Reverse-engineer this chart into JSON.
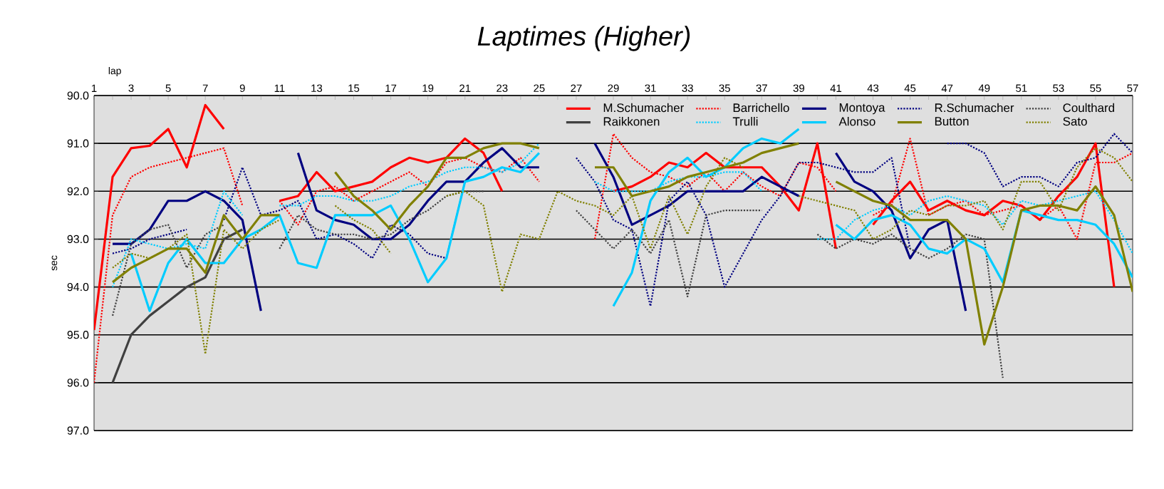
{
  "chart_data": {
    "type": "line",
    "title": "Laptimes (Higher)",
    "xlabel": "lap",
    "ylabel": "sec",
    "x": [
      1,
      2,
      3,
      4,
      5,
      6,
      7,
      8,
      9,
      10,
      11,
      12,
      13,
      14,
      15,
      16,
      17,
      18,
      19,
      20,
      21,
      22,
      23,
      24,
      25,
      26,
      27,
      28,
      29,
      30,
      31,
      32,
      33,
      34,
      35,
      36,
      37,
      38,
      39,
      40,
      41,
      42,
      43,
      44,
      45,
      46,
      47,
      48,
      49,
      50,
      51,
      52,
      53,
      54,
      55,
      56,
      57
    ],
    "xlim": [
      1,
      57
    ],
    "ylim": [
      97,
      90
    ],
    "xticks": [
      1,
      {
        "value": 2,
        "label": null
      },
      3,
      {
        "value": 4,
        "label": null
      },
      5,
      {
        "value": 6,
        "label": null
      },
      7,
      {
        "value": 8,
        "label": null
      },
      9,
      {
        "value": 10,
        "label": null
      },
      11,
      {
        "value": 12,
        "label": null
      },
      13,
      {
        "value": 14,
        "label": null
      },
      15,
      {
        "value": 16,
        "label": null
      },
      17,
      {
        "value": 18,
        "label": null
      },
      19,
      {
        "value": 20,
        "label": null
      },
      21,
      {
        "value": 22,
        "label": null
      },
      23,
      {
        "value": 24,
        "label": null
      },
      25,
      {
        "value": 26,
        "label": null
      },
      27,
      {
        "value": 28,
        "label": null
      },
      29,
      {
        "value": 30,
        "label": null
      },
      31,
      {
        "value": 32,
        "label": null
      },
      33,
      {
        "value": 34,
        "label": null
      },
      35,
      {
        "value": 36,
        "label": null
      },
      37,
      {
        "value": 38,
        "label": null
      },
      39,
      {
        "value": 40,
        "label": null
      },
      41,
      {
        "value": 42,
        "label": null
      },
      43,
      {
        "value": 44,
        "label": null
      },
      45,
      {
        "value": 46,
        "label": null
      },
      47,
      {
        "value": 48,
        "label": null
      },
      49,
      {
        "value": 50,
        "label": null
      },
      51,
      {
        "value": 52,
        "label": null
      },
      53,
      {
        "value": 54,
        "label": null
      },
      55,
      {
        "value": 56,
        "label": null
      },
      57
    ],
    "yticks": [
      {
        "value": 90,
        "label": "90.0"
      },
      {
        "value": 91,
        "label": "91.0"
      },
      {
        "value": 92,
        "label": "92.0"
      },
      {
        "value": 93,
        "label": "93.0"
      },
      {
        "value": 94,
        "label": "94.0"
      },
      {
        "value": 95,
        "label": "95.0"
      },
      {
        "value": 96,
        "label": "96.0"
      },
      {
        "value": 97,
        "label": "97.0"
      }
    ],
    "grid": "y",
    "legend": "top",
    "marker": "none",
    "series": [
      {
        "name": "M.Schumacher",
        "color": "#ff0000",
        "line_style": "solid",
        "values": [
          94.9,
          91.7,
          91.1,
          91.05,
          90.7,
          91.5,
          90.2,
          90.7,
          null,
          null,
          92.2,
          92.1,
          91.6,
          92.0,
          91.9,
          91.8,
          91.5,
          91.3,
          91.4,
          91.3,
          90.9,
          91.2,
          92.0,
          null,
          null,
          null,
          null,
          null,
          92.0,
          91.9,
          91.7,
          91.4,
          91.5,
          91.2,
          91.5,
          91.5,
          91.5,
          91.9,
          92.4,
          91.0,
          93.2,
          null,
          92.7,
          92.2,
          91.8,
          92.4,
          92.2,
          92.4,
          92.5,
          92.2,
          92.3,
          92.6,
          92.1,
          91.7,
          91.0,
          94.0,
          null
        ]
      },
      {
        "name": "Barrichello",
        "color": "#ff0000",
        "line_style": "dotted",
        "values": [
          96.0,
          92.5,
          91.7,
          91.5,
          91.4,
          91.3,
          91.2,
          91.1,
          92.3,
          null,
          92.2,
          92.7,
          92.0,
          91.9,
          92.2,
          92.0,
          91.8,
          91.6,
          91.9,
          91.4,
          91.3,
          91.5,
          91.6,
          91.3,
          91.8,
          null,
          null,
          93.0,
          90.8,
          91.3,
          91.6,
          91.7,
          91.9,
          91.6,
          92.0,
          91.6,
          91.9,
          92.1,
          91.4,
          91.5,
          92.0,
          null,
          92.5,
          92.3,
          90.9,
          92.5,
          92.3,
          92.2,
          92.5,
          92.4,
          92.3,
          92.6,
          92.3,
          93.0,
          91.4,
          91.4,
          91.2
        ]
      },
      {
        "name": "Montoya",
        "color": "#000080",
        "line_style": "solid",
        "values": [
          null,
          93.1,
          93.1,
          92.8,
          92.2,
          92.2,
          92.0,
          92.2,
          92.6,
          94.5,
          null,
          91.2,
          92.4,
          92.6,
          92.7,
          93.0,
          93.0,
          92.7,
          92.2,
          91.8,
          91.8,
          91.4,
          91.1,
          91.5,
          91.5,
          null,
          null,
          91.0,
          91.7,
          92.7,
          92.5,
          92.3,
          92.0,
          92.0,
          92.0,
          92.0,
          91.7,
          91.9,
          92.1,
          null,
          91.2,
          91.8,
          92.0,
          92.4,
          93.4,
          92.8,
          92.6,
          94.5,
          null,
          null,
          null,
          null,
          null,
          null,
          null,
          null,
          null
        ]
      },
      {
        "name": "R.Schumacher",
        "color": "#000080",
        "line_style": "dotted",
        "values": [
          null,
          93.3,
          93.2,
          93.0,
          92.9,
          92.8,
          null,
          92.6,
          91.5,
          92.5,
          92.4,
          92.2,
          93.0,
          92.9,
          93.1,
          93.4,
          92.7,
          92.9,
          93.3,
          93.4,
          91.8,
          91.4,
          91.1,
          null,
          null,
          null,
          91.3,
          91.8,
          92.6,
          92.8,
          94.4,
          92.2,
          91.8,
          92.5,
          94.0,
          93.3,
          92.6,
          92.1,
          91.4,
          91.4,
          91.5,
          91.6,
          91.6,
          91.3,
          93.2,
          null,
          91.0,
          91.0,
          91.2,
          91.9,
          91.7,
          91.7,
          91.9,
          91.4,
          91.3,
          90.8,
          91.2
        ]
      },
      {
        "name": "Coulthard",
        "color": "#404040",
        "line_style": "dotted",
        "values": [
          null,
          94.6,
          93.1,
          92.8,
          92.7,
          93.6,
          92.9,
          92.7,
          null,
          null,
          93.2,
          92.5,
          92.8,
          92.9,
          92.9,
          93.0,
          92.9,
          92.6,
          92.4,
          92.1,
          92.0,
          92.0,
          null,
          null,
          null,
          null,
          92.4,
          92.8,
          93.2,
          92.8,
          93.3,
          92.6,
          94.2,
          92.5,
          92.4,
          92.4,
          92.4,
          null,
          null,
          92.9,
          93.2,
          93.0,
          93.1,
          92.9,
          93.2,
          93.4,
          93.2,
          92.9,
          93.0,
          95.9,
          null,
          null,
          null,
          null,
          null,
          null,
          null
        ]
      },
      {
        "name": "Raikkonen",
        "color": "#404040",
        "line_style": "solid",
        "values": [
          null,
          96.0,
          95.0,
          94.6,
          94.3,
          94.0,
          93.8,
          93.0,
          92.8,
          null,
          null,
          null,
          null,
          null,
          null,
          null,
          null,
          null,
          null,
          null,
          null,
          null,
          null,
          null,
          null,
          null,
          null,
          null,
          null,
          null,
          null,
          null,
          null,
          null,
          null,
          null,
          null,
          null,
          null,
          null,
          null,
          null,
          null,
          null,
          null,
          null,
          null,
          null,
          null,
          null,
          null,
          null,
          null,
          null,
          null,
          null,
          null
        ]
      },
      {
        "name": "Trulli",
        "color": "#00ccff",
        "line_style": "dotted",
        "values": [
          null,
          94.0,
          93.0,
          93.1,
          93.2,
          93.1,
          93.2,
          92.0,
          92.5,
          null,
          92.3,
          92.3,
          92.1,
          92.1,
          92.2,
          92.2,
          92.1,
          91.9,
          91.8,
          91.6,
          91.5,
          91.5,
          91.6,
          91.4,
          91.0,
          null,
          null,
          91.8,
          92.0,
          92.0,
          92.0,
          91.8,
          91.7,
          91.7,
          91.6,
          91.6,
          92.0,
          null,
          null,
          93.0,
          93.0,
          92.6,
          92.4,
          92.3,
          92.5,
          92.2,
          92.1,
          92.2,
          92.3,
          92.7,
          92.2,
          92.3,
          92.2,
          92.1,
          92.0,
          92.6,
          93.3
        ]
      },
      {
        "name": "Alonso",
        "color": "#00ccff",
        "line_style": "solid",
        "values": [
          null,
          null,
          93.3,
          94.5,
          93.5,
          93.0,
          93.5,
          93.5,
          93.0,
          92.8,
          92.5,
          93.5,
          93.6,
          92.5,
          92.5,
          92.5,
          92.3,
          93.0,
          93.9,
          93.4,
          91.8,
          91.7,
          91.5,
          91.6,
          91.2,
          null,
          null,
          null,
          94.4,
          93.7,
          92.2,
          91.6,
          91.3,
          91.7,
          91.5,
          91.1,
          90.9,
          91.0,
          90.7,
          null,
          92.7,
          93.0,
          92.6,
          92.5,
          92.7,
          93.2,
          93.3,
          93.0,
          93.2,
          93.9,
          92.4,
          92.5,
          92.6,
          92.6,
          92.7,
          93.1,
          93.8
        ]
      },
      {
        "name": "Button",
        "color": "#808000",
        "line_style": "solid",
        "values": [
          null,
          93.9,
          93.6,
          93.4,
          93.2,
          93.2,
          93.7,
          92.5,
          93.0,
          92.5,
          92.5,
          null,
          null,
          91.6,
          92.1,
          92.4,
          92.8,
          92.3,
          91.9,
          91.3,
          91.3,
          91.1,
          91.0,
          91.0,
          91.1,
          null,
          null,
          91.5,
          91.5,
          92.1,
          92.0,
          91.9,
          91.7,
          91.6,
          91.5,
          91.4,
          91.2,
          91.1,
          91.0,
          null,
          91.8,
          92.0,
          92.2,
          92.3,
          92.6,
          92.6,
          92.6,
          93.0,
          95.2,
          94.0,
          92.4,
          92.3,
          92.3,
          92.4,
          91.9,
          92.5,
          94.1
        ]
      },
      {
        "name": "Sato",
        "color": "#808000",
        "line_style": "dotted",
        "values": [
          null,
          93.6,
          93.3,
          93.4,
          93.2,
          92.9,
          95.4,
          92.8,
          93.2,
          92.8,
          92.6,
          null,
          null,
          92.3,
          92.6,
          92.8,
          93.3,
          null,
          null,
          92.1,
          92.0,
          92.3,
          94.1,
          92.9,
          93.0,
          92.0,
          92.2,
          92.3,
          92.5,
          92.1,
          93.2,
          92.1,
          92.9,
          91.9,
          91.3,
          91.5,
          null,
          null,
          92.1,
          92.2,
          92.3,
          92.4,
          93.0,
          92.8,
          92.4,
          92.5,
          92.3,
          92.3,
          92.2,
          92.8,
          91.8,
          91.8,
          92.4,
          91.5,
          91.1,
          91.3,
          91.8
        ]
      }
    ]
  }
}
